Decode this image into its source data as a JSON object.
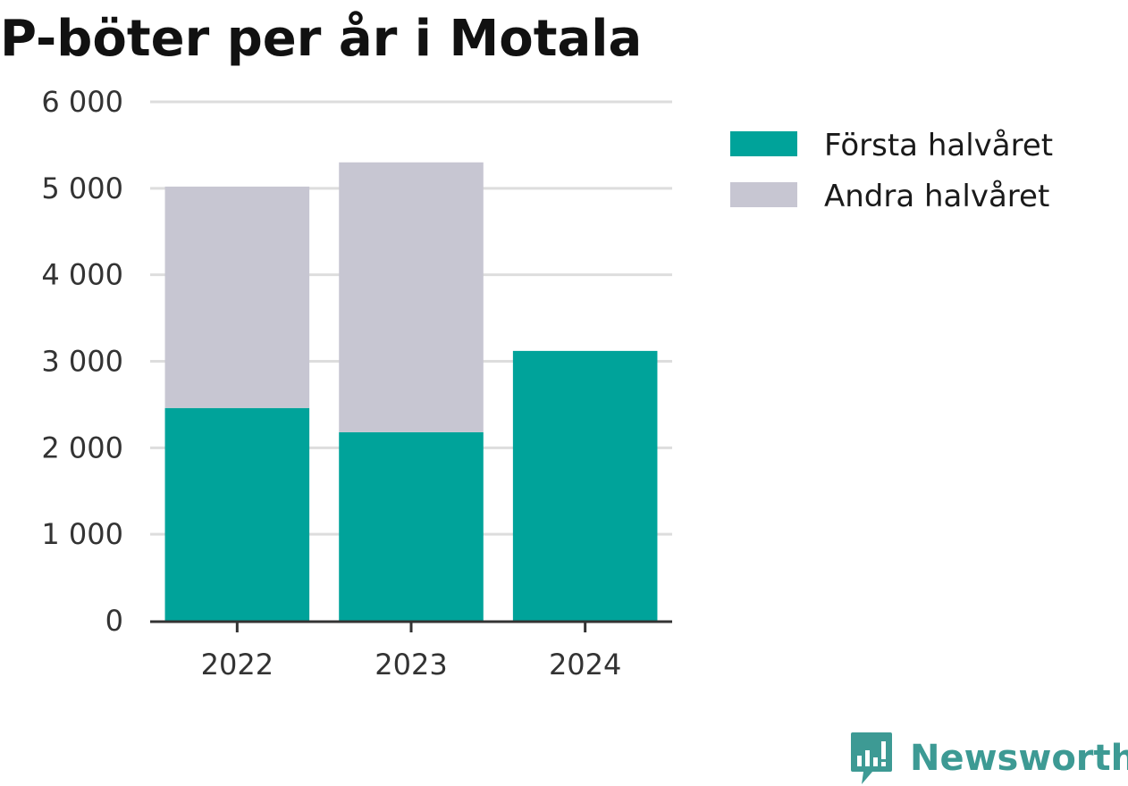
{
  "chart_data": {
    "type": "bar",
    "stacked": true,
    "title": "P-böter per år i Motala",
    "categories": [
      "2022",
      "2023",
      "2024"
    ],
    "series": [
      {
        "name": "Första halvåret",
        "values": [
          2460,
          2180,
          3120
        ],
        "color": "#00a39a"
      },
      {
        "name": "Andra halvåret",
        "values": [
          2560,
          3120,
          0
        ],
        "color": "#c7c6d2"
      }
    ],
    "yticks": [
      0,
      1000,
      2000,
      3000,
      4000,
      5000,
      6000
    ],
    "ytick_labels": [
      "0",
      "1 000",
      "2 000",
      "3 000",
      "4 000",
      "5 000",
      "6 000"
    ],
    "ylim": [
      0,
      6000
    ],
    "xlabel": "",
    "ylabel": "",
    "grid": true,
    "legend_position": "right"
  },
  "brand": {
    "name": "Newsworthy",
    "icon": "newsworthy-logo-icon",
    "color": "#3d9a94"
  }
}
